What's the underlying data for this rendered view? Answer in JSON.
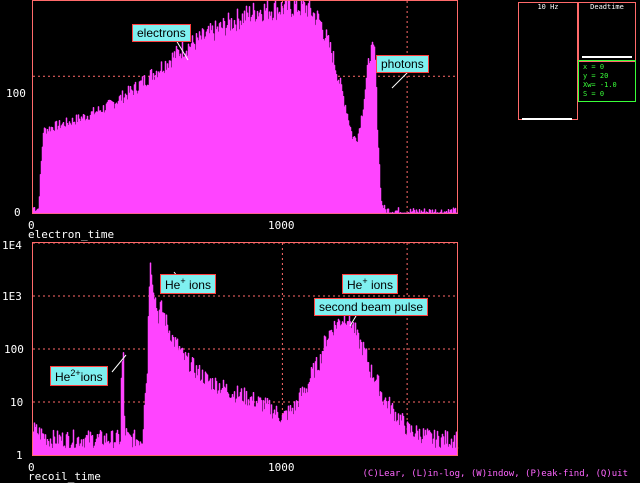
{
  "status_bar": {
    "text": "(C)Lear, (L)in-log, (W)indow, (P)eak-find, (Q)uit"
  },
  "monitor": {
    "rate_label": "10 Hz",
    "deadtime_label": "Deadtime",
    "readout": [
      "x = 0",
      "y = 20",
      "Xw= -1.0",
      "S = 0"
    ]
  },
  "colors": {
    "histogram": "#ff44ff",
    "frame": "#ff6a6a",
    "callout_bg": "#7ff0f0",
    "readout": "#39ff39"
  },
  "chart_data": [
    {
      "type": "area",
      "xlabel": "electron_time",
      "x_ticks": [
        "0",
        "1000"
      ],
      "y_ticks": [
        "0",
        "100"
      ],
      "xlim": [
        0,
        1700
      ],
      "ylim": [
        0,
        155
      ],
      "scale": "linear",
      "annotations": [
        {
          "text": "electrons",
          "x": 530,
          "y": 135
        },
        {
          "text": "photons",
          "x": 1370,
          "y": 110
        }
      ],
      "series": [
        {
          "x": [
            0,
            20,
            40,
            80,
            120,
            200,
            300,
            400,
            500,
            600,
            700,
            800,
            900,
            1000,
            1050,
            1100,
            1150,
            1200,
            1250,
            1280,
            1300,
            1320,
            1350,
            1370,
            1380,
            1395,
            1410,
            1500,
            1600,
            1700
          ],
          "values": [
            4,
            3,
            60,
            63,
            65,
            70,
            78,
            90,
            105,
            120,
            130,
            140,
            148,
            150,
            151,
            150,
            140,
            115,
            80,
            55,
            55,
            75,
            118,
            118,
            60,
            8,
            2,
            1,
            1,
            1
          ]
        }
      ]
    },
    {
      "type": "area",
      "xlabel": "recoil_time",
      "x_ticks": [
        "0",
        "1000"
      ],
      "y_ticks": [
        "1",
        "10",
        "100",
        "1E3",
        "1E4"
      ],
      "xlim": [
        0,
        1700
      ],
      "ylim": [
        1,
        10000
      ],
      "scale": "log",
      "annotations": [
        {
          "text": "He",
          "sup": "+",
          "suffix": " ions",
          "x": 590,
          "y": 3000
        },
        {
          "text": "He",
          "sup": "+",
          "suffix": " ions",
          "x": 1320,
          "y": 3000
        },
        {
          "text": "second beam pulse",
          "x": 1320,
          "y": 1300
        },
        {
          "text": "He",
          "sup": "2+",
          "suffix": "ions",
          "x": 340,
          "y": 80
        }
      ],
      "series": [
        {
          "x": [
            0,
            60,
            200,
            340,
            350,
            360,
            365,
            380,
            440,
            460,
            470,
            480,
            490,
            500,
            510,
            520,
            530,
            540,
            560,
            600,
            650,
            700,
            800,
            900,
            1000,
            1050,
            1100,
            1150,
            1200,
            1250,
            1260,
            1300,
            1350,
            1400,
            1450,
            1500,
            1600,
            1700
          ],
          "values": [
            3,
            2,
            2,
            2,
            2,
            80,
            3,
            2,
            2,
            40,
            4000,
            1600,
            800,
            400,
            600,
            500,
            350,
            250,
            150,
            70,
            40,
            25,
            15,
            10,
            5,
            8,
            20,
            60,
            250,
            400,
            420,
            150,
            40,
            12,
            6,
            3,
            2,
            2
          ]
        }
      ]
    }
  ]
}
